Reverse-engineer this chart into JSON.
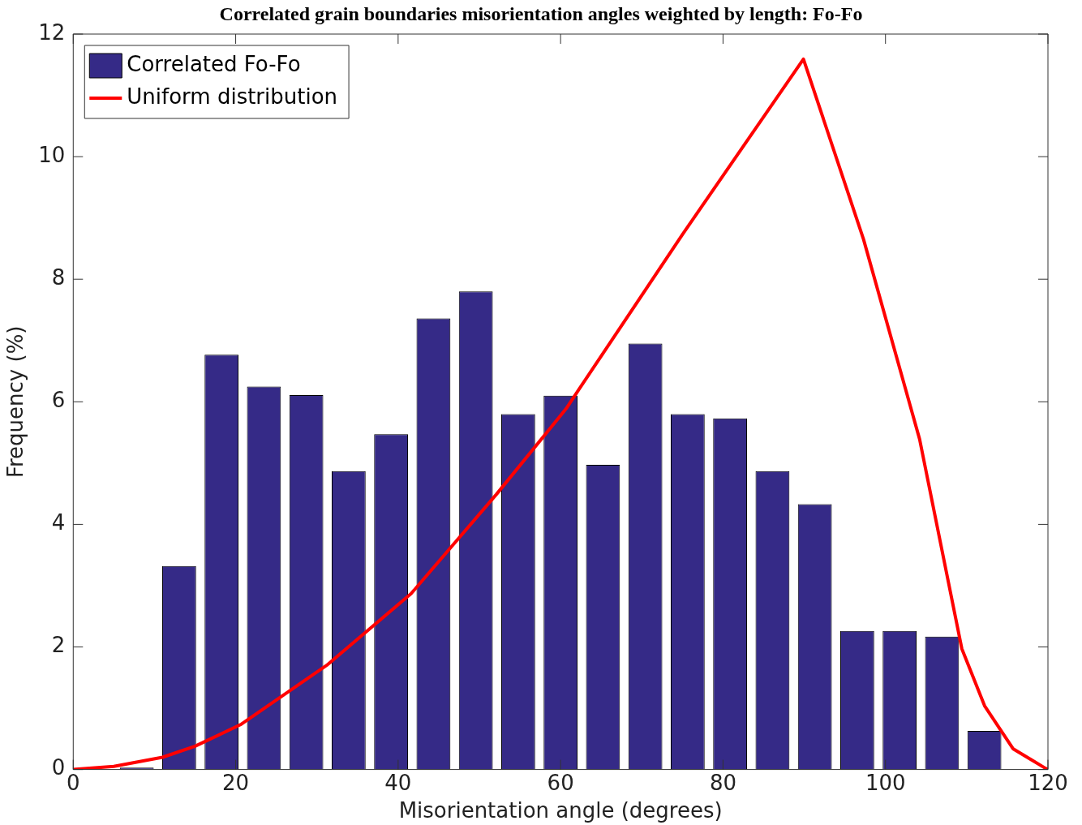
{
  "chart_data": {
    "type": "histogram",
    "title": "Correlated grain boundaries misorientation angles weighted by length: Fo-Fo",
    "xlabel": "Misorientation angle (degrees)",
    "ylabel": "Frequency (%)",
    "bins": [
      0,
      5.22,
      10.43,
      15.65,
      20.87,
      26.09,
      31.3,
      36.52,
      41.74,
      46.96,
      52.17,
      57.39,
      62.61,
      67.83,
      73.04,
      78.26,
      83.48,
      88.7,
      93.91,
      99.13,
      104.35,
      109.57,
      114.78,
      120
    ],
    "series": [
      {
        "name": "Correlated Fo-Fo",
        "type": "histogram",
        "color": "#352a87",
        "values": [
          0,
          0.03,
          3.32,
          6.77,
          6.25,
          6.11,
          4.87,
          5.47,
          7.36,
          7.8,
          5.8,
          6.1,
          4.97,
          6.95,
          5.8,
          5.73,
          4.87,
          4.33,
          2.26,
          2.26,
          2.17,
          0.63,
          0
        ]
      },
      {
        "name": "Uniform distribution",
        "type": "line",
        "color": "#ff0000",
        "x": [
          0,
          5,
          11,
          15,
          20.7,
          31.2,
          41.6,
          52.1,
          60.7,
          62.2,
          75,
          89.9,
          97.3,
          104.2,
          109.4,
          112.2,
          115.7,
          119.7,
          120
        ],
        "values": [
          0,
          0.05,
          0.2,
          0.38,
          0.74,
          1.7,
          2.87,
          4.49,
          5.89,
          6.19,
          8.73,
          11.59,
          8.65,
          5.39,
          1.97,
          1.04,
          0.34,
          0.02,
          0
        ]
      }
    ],
    "xlim": [
      0,
      120
    ],
    "ylim": [
      0,
      12
    ],
    "xticks": [
      0,
      20,
      40,
      60,
      80,
      100,
      120
    ],
    "yticks": [
      0,
      2,
      4,
      6,
      8,
      10,
      12
    ],
    "grid": false,
    "legend": "top left"
  }
}
